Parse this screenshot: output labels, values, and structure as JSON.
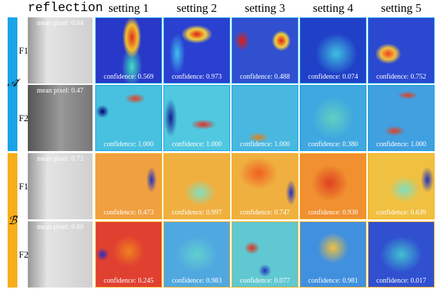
{
  "headers": [
    "reflection",
    "setting 1",
    "setting 2",
    "setting 3",
    "setting 4",
    "setting 5"
  ],
  "groups": [
    {
      "label": "𝒜̃",
      "rows": [
        {
          "label": "F1",
          "mean_pixel": "mean pixel: 0.64",
          "confidences": [
            "confidence: 0.569",
            "confidence: 0.973",
            "confidence: 0.488",
            "confidence: 0.074",
            "confidence: 0.752"
          ]
        },
        {
          "label": "F2",
          "mean_pixel": "mean pixel: 0.47",
          "confidences": [
            "confidence: 1.000",
            "confidence: 1.000",
            "confidence: 1.000",
            "confidence: 0.380",
            "confidence: 1.000"
          ]
        }
      ]
    },
    {
      "label": "ℬ̃",
      "rows": [
        {
          "label": "F1",
          "mean_pixel": "mean pixel: 0.72",
          "confidences": [
            "confidence: 0.473",
            "confidence: 0.997",
            "confidence: 0.747",
            "confidence: 0.930",
            "confidence: 0.639"
          ]
        },
        {
          "label": "F2",
          "mean_pixel": "mean pixel: 0.69",
          "confidences": [
            "confidence: 0.245",
            "confidence: 0.983",
            "confidence: 0.077",
            "confidence: 0.981",
            "confidence: 0.017"
          ]
        }
      ]
    }
  ]
}
